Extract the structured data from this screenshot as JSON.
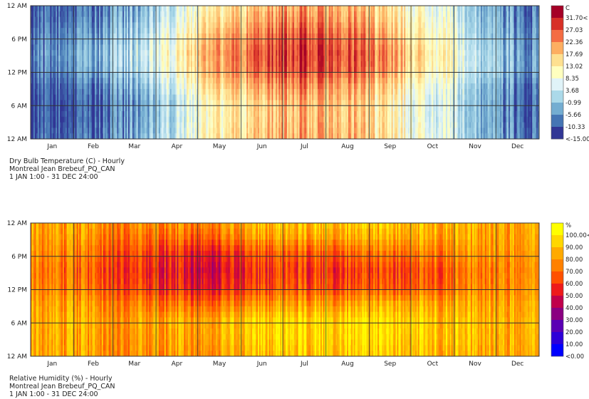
{
  "chart_data": [
    {
      "type": "heatmap",
      "title": "Dry Bulb Temperature (C) - Hourly",
      "subtitle": "Montreal Jean Brebeuf_PQ_CAN",
      "period": "1 JAN 1:00 - 31 DEC 24:00",
      "x_tick_labels": [
        "Jan",
        "Feb",
        "Mar",
        "Apr",
        "May",
        "Jun",
        "Jul",
        "Aug",
        "Sep",
        "Oct",
        "Nov",
        "Dec"
      ],
      "y_tick_labels": [
        "12 AM",
        "6 PM",
        "12 PM",
        "6 AM",
        "12 AM"
      ],
      "legend_unit": "C",
      "legend_labels": [
        "31.70<",
        "27.03",
        "22.36",
        "17.69",
        "13.02",
        "8.35",
        "3.68",
        "-0.99",
        "-5.66",
        "-10.33",
        "<-15.00"
      ],
      "legend_colors": [
        "#a50026",
        "#d73027",
        "#f46d43",
        "#fdae61",
        "#fee090",
        "#ffffbf",
        "#e0f3f8",
        "#abd9e9",
        "#74add1",
        "#4575b4",
        "#313695"
      ],
      "value_range": [
        -15.0,
        31.7
      ],
      "monthly_mean_by_hour": {
        "note_hours": [
          0,
          3,
          6,
          9,
          12,
          15,
          18,
          21
        ],
        "Jan": [
          -13,
          -14,
          -14,
          -13,
          -10,
          -9,
          -10,
          -12
        ],
        "Feb": [
          -12,
          -13,
          -13,
          -11,
          -7,
          -6,
          -8,
          -10
        ],
        "Mar": [
          -6,
          -7,
          -7,
          -5,
          -1,
          0,
          -2,
          -4
        ],
        "Apr": [
          2,
          1,
          1,
          4,
          8,
          9,
          7,
          4
        ],
        "May": [
          10,
          9,
          9,
          13,
          17,
          18,
          16,
          12
        ],
        "Jun": [
          15,
          14,
          14,
          18,
          23,
          24,
          22,
          18
        ],
        "Jul": [
          18,
          17,
          17,
          21,
          26,
          27,
          25,
          21
        ],
        "Aug": [
          17,
          16,
          16,
          19,
          24,
          25,
          23,
          19
        ],
        "Sep": [
          11,
          10,
          10,
          13,
          18,
          19,
          16,
          13
        ],
        "Oct": [
          5,
          4,
          4,
          6,
          10,
          11,
          9,
          7
        ],
        "Nov": [
          -2,
          -2,
          -2,
          -1,
          2,
          2,
          0,
          -1
        ],
        "Dec": [
          -10,
          -11,
          -11,
          -10,
          -7,
          -7,
          -8,
          -9
        ]
      }
    },
    {
      "type": "heatmap",
      "title": "Relative Humidity (%) - Hourly",
      "subtitle": "Montreal Jean Brebeuf_PQ_CAN",
      "period": "1 JAN 1:00 - 31 DEC 24:00",
      "x_tick_labels": [
        "Jan",
        "Feb",
        "Mar",
        "Apr",
        "May",
        "Jun",
        "Jul",
        "Aug",
        "Sep",
        "Oct",
        "Nov",
        "Dec"
      ],
      "y_tick_labels": [
        "12 AM",
        "6 PM",
        "12 PM",
        "6 AM",
        "12 AM"
      ],
      "legend_unit": "%",
      "legend_labels": [
        "100.00<",
        "90.00",
        "80.00",
        "70.00",
        "60.00",
        "50.00",
        "40.00",
        "30.00",
        "20.00",
        "10.00",
        "<0.00"
      ],
      "legend_colors": [
        "#ffff00",
        "#ffd700",
        "#ffaa00",
        "#ff8000",
        "#ff5000",
        "#ee1a1a",
        "#c0004a",
        "#8a0080",
        "#5a00b4",
        "#2d00d8",
        "#0000ff"
      ],
      "value_range": [
        0,
        100
      ],
      "monthly_mean_by_hour": {
        "note_hours": [
          0,
          3,
          6,
          9,
          12,
          15,
          18,
          21
        ],
        "Jan": [
          78,
          79,
          80,
          77,
          70,
          68,
          72,
          76
        ],
        "Feb": [
          76,
          77,
          78,
          74,
          64,
          61,
          66,
          72
        ],
        "Mar": [
          74,
          76,
          77,
          70,
          58,
          55,
          60,
          68
        ],
        "Apr": [
          76,
          79,
          80,
          68,
          52,
          48,
          54,
          66
        ],
        "May": [
          78,
          82,
          83,
          68,
          50,
          46,
          52,
          68
        ],
        "Jun": [
          84,
          88,
          88,
          74,
          58,
          54,
          60,
          76
        ],
        "Jul": [
          86,
          90,
          90,
          76,
          60,
          56,
          62,
          78
        ],
        "Aug": [
          88,
          92,
          92,
          78,
          60,
          56,
          64,
          80
        ],
        "Sep": [
          88,
          92,
          93,
          82,
          62,
          58,
          68,
          82
        ],
        "Oct": [
          84,
          88,
          88,
          80,
          64,
          62,
          70,
          80
        ],
        "Nov": [
          82,
          84,
          84,
          80,
          72,
          70,
          76,
          80
        ],
        "Dec": [
          82,
          83,
          83,
          81,
          76,
          75,
          78,
          80
        ]
      }
    }
  ]
}
